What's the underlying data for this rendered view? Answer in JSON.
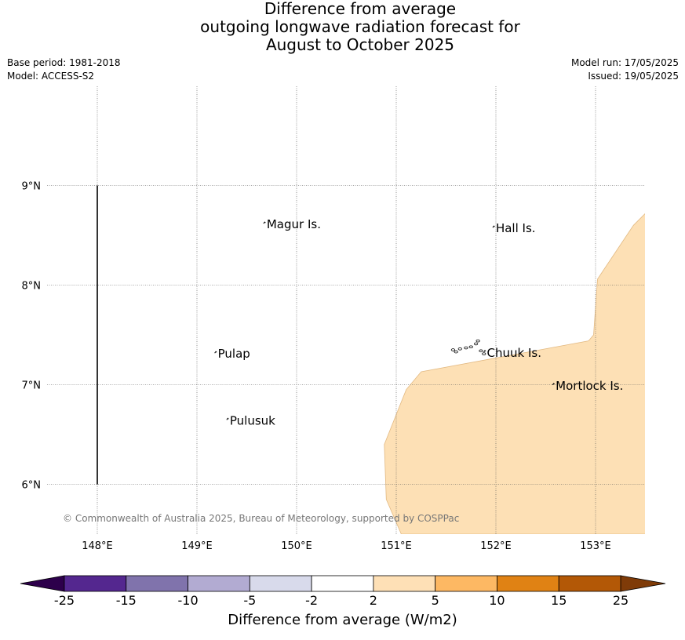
{
  "title_lines": [
    "Difference from average",
    "outgoing longwave radiation forecast for",
    "August to October 2025"
  ],
  "base_period": "Base period: 1981-2018",
  "model": "Model: ACCESS-S2",
  "model_run": "Model run: 17/05/2025",
  "issued": "Issued: 19/05/2025",
  "copyright": "© Commonwealth of Australia 2025, Bureau of Meteorology, supported by COSPPac",
  "map": {
    "lon_range": [
      147.5,
      153.5
    ],
    "lat_range": [
      5.5,
      10.0
    ],
    "lon_ticks": [
      "148°E",
      "149°E",
      "150°E",
      "151°E",
      "152°E",
      "153°E"
    ],
    "lat_ticks": [
      "9°N",
      "8°N",
      "7°N",
      "6°N"
    ],
    "places": [
      {
        "name": "Magur Is.",
        "lon": 149.68,
        "lat": 8.57
      },
      {
        "name": "Hall Is.",
        "lon": 151.98,
        "lat": 8.53
      },
      {
        "name": "Pulap",
        "lon": 149.19,
        "lat": 7.27
      },
      {
        "name": "Chuuk Is.",
        "lon": 151.89,
        "lat": 7.28
      },
      {
        "name": "Mortlock Is.",
        "lon": 152.58,
        "lat": 6.95
      },
      {
        "name": "Pulusuk",
        "lon": 149.31,
        "lat": 6.6
      }
    ],
    "anomaly_fill_color": "#fde0b5",
    "anomaly_region": [
      [
        151.05,
        5.5
      ],
      [
        150.9,
        5.85
      ],
      [
        150.88,
        6.4
      ],
      [
        151.1,
        6.95
      ],
      [
        151.25,
        7.13
      ],
      [
        152.93,
        7.44
      ],
      [
        152.98,
        7.5
      ],
      [
        153.02,
        8.06
      ],
      [
        153.38,
        8.6
      ],
      [
        153.5,
        8.72
      ],
      [
        153.5,
        5.5
      ]
    ],
    "boundary_line": {
      "lon": 148.0,
      "lat_from": 6.0,
      "lat_to": 9.0
    }
  },
  "colorbar": {
    "ticks": [
      "-25",
      "-15",
      "-10",
      "-5",
      "-2",
      "2",
      "5",
      "10",
      "15",
      "25"
    ],
    "colors": [
      "#54278f",
      "#8073ac",
      "#b2abd2",
      "#d8daeb",
      "#ffffff",
      "#fee0b6",
      "#fdb863",
      "#e08214",
      "#b35806"
    ],
    "under_color": "#2d004b",
    "over_color": "#7f3b08",
    "label": "Difference from average (W/m2)"
  }
}
